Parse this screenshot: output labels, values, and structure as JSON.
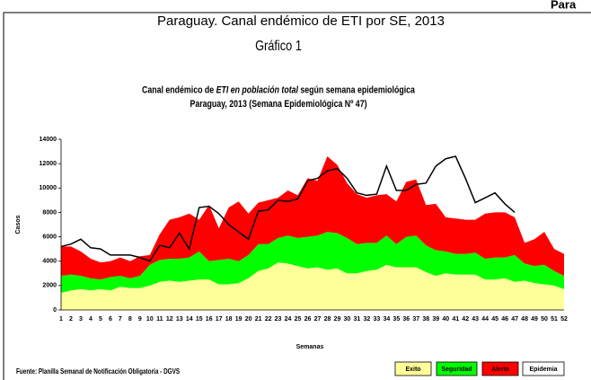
{
  "header_cut": "Para",
  "chart_data": {
    "type": "stacked-area",
    "title": "Paraguay. Canal endémico de ETI por SE, 2013",
    "chart_label": "Gráfico 1",
    "subtitle_parts": [
      "Canal endémico de ",
      "ETI en población total",
      " según semana epidemiológica"
    ],
    "subtitle_line2": "Paraguay, 2013 (Semana Epidemiológica Nº 47)",
    "y_label": "Casos",
    "x_label": "Semanas",
    "source": "Fuente: Planilla Semanal de Notificación Obligatoria - DGVS",
    "categories": [
      "1",
      "2",
      "3",
      "4",
      "5",
      "6",
      "7",
      "8",
      "9",
      "10",
      "11",
      "12",
      "13",
      "14",
      "15",
      "16",
      "17",
      "18",
      "19",
      "20",
      "21",
      "22",
      "23",
      "24",
      "25",
      "26",
      "27",
      "28",
      "29",
      "30",
      "31",
      "32",
      "33",
      "34",
      "35",
      "36",
      "37",
      "38",
      "39",
      "40",
      "41",
      "42",
      "43",
      "44",
      "45",
      "46",
      "47",
      "48",
      "49",
      "50",
      "51",
      "52"
    ],
    "ylim": [
      0,
      14000
    ],
    "yticks": [
      0,
      2000,
      4000,
      6000,
      8000,
      10000,
      12000,
      14000
    ],
    "grid": false,
    "series": [
      {
        "name": "Exito",
        "color": "#ffff99",
        "values": [
          1400,
          1600,
          1700,
          1600,
          1700,
          1600,
          1900,
          1800,
          1800,
          2000,
          2300,
          2400,
          2300,
          2400,
          2500,
          2500,
          2100,
          2100,
          2200,
          2600,
          3200,
          3400,
          3900,
          3800,
          3600,
          3400,
          3500,
          3300,
          3400,
          3000,
          3000,
          3200,
          3300,
          3700,
          3500,
          3500,
          3500,
          3100,
          2800,
          3000,
          2900,
          2900,
          2900,
          2500,
          2500,
          2600,
          2300,
          2400,
          2200,
          2100,
          2000,
          1700
        ]
      },
      {
        "name": "Seguridad",
        "color": "#00ff00",
        "values": [
          1400,
          1300,
          1100,
          1000,
          800,
          1100,
          900,
          800,
          1000,
          1700,
          1800,
          1800,
          1900,
          1900,
          2300,
          1500,
          2000,
          2100,
          1800,
          1900,
          2200,
          2000,
          2000,
          2300,
          2300,
          2600,
          2600,
          3100,
          2900,
          2900,
          2400,
          2300,
          2200,
          2400,
          1900,
          2500,
          2600,
          2200,
          2100,
          1800,
          1700,
          1700,
          1800,
          1700,
          1800,
          1700,
          2200,
          1400,
          1400,
          1600,
          1200,
          1100
        ]
      },
      {
        "name": "Alerta",
        "color": "#ff0000",
        "values": [
          2400,
          2300,
          2000,
          1600,
          1400,
          1300,
          1500,
          1400,
          1600,
          800,
          2100,
          3200,
          3400,
          3600,
          2600,
          4600,
          2600,
          4200,
          4900,
          3400,
          3400,
          3600,
          3300,
          3700,
          3500,
          4800,
          4500,
          6200,
          5600,
          4500,
          4100,
          3700,
          3900,
          3400,
          3500,
          4500,
          4600,
          3300,
          3800,
          2800,
          2900,
          2800,
          2700,
          3700,
          3700,
          3700,
          3100,
          1700,
          2200,
          2700,
          1800,
          1800
        ]
      }
    ],
    "epidemia_zone": {
      "name": "Epidemia",
      "color": "#ffffff"
    },
    "line": {
      "color": "#000000",
      "values": [
        5200,
        5400,
        5800,
        5100,
        5000,
        4500,
        4500,
        4500,
        4300,
        4000,
        5300,
        5100,
        6300,
        5000,
        8400,
        8500,
        7900,
        7000,
        6400,
        5800,
        8100,
        8200,
        9000,
        8900,
        9100,
        10600,
        10800,
        11400,
        11600,
        10800,
        9600,
        9400,
        9500,
        11800,
        9800,
        9800,
        10300,
        10400,
        11800,
        12400,
        12600,
        10800,
        8800,
        9200,
        9600,
        8700,
        8000,
        null,
        null,
        null,
        null,
        null
      ]
    }
  }
}
